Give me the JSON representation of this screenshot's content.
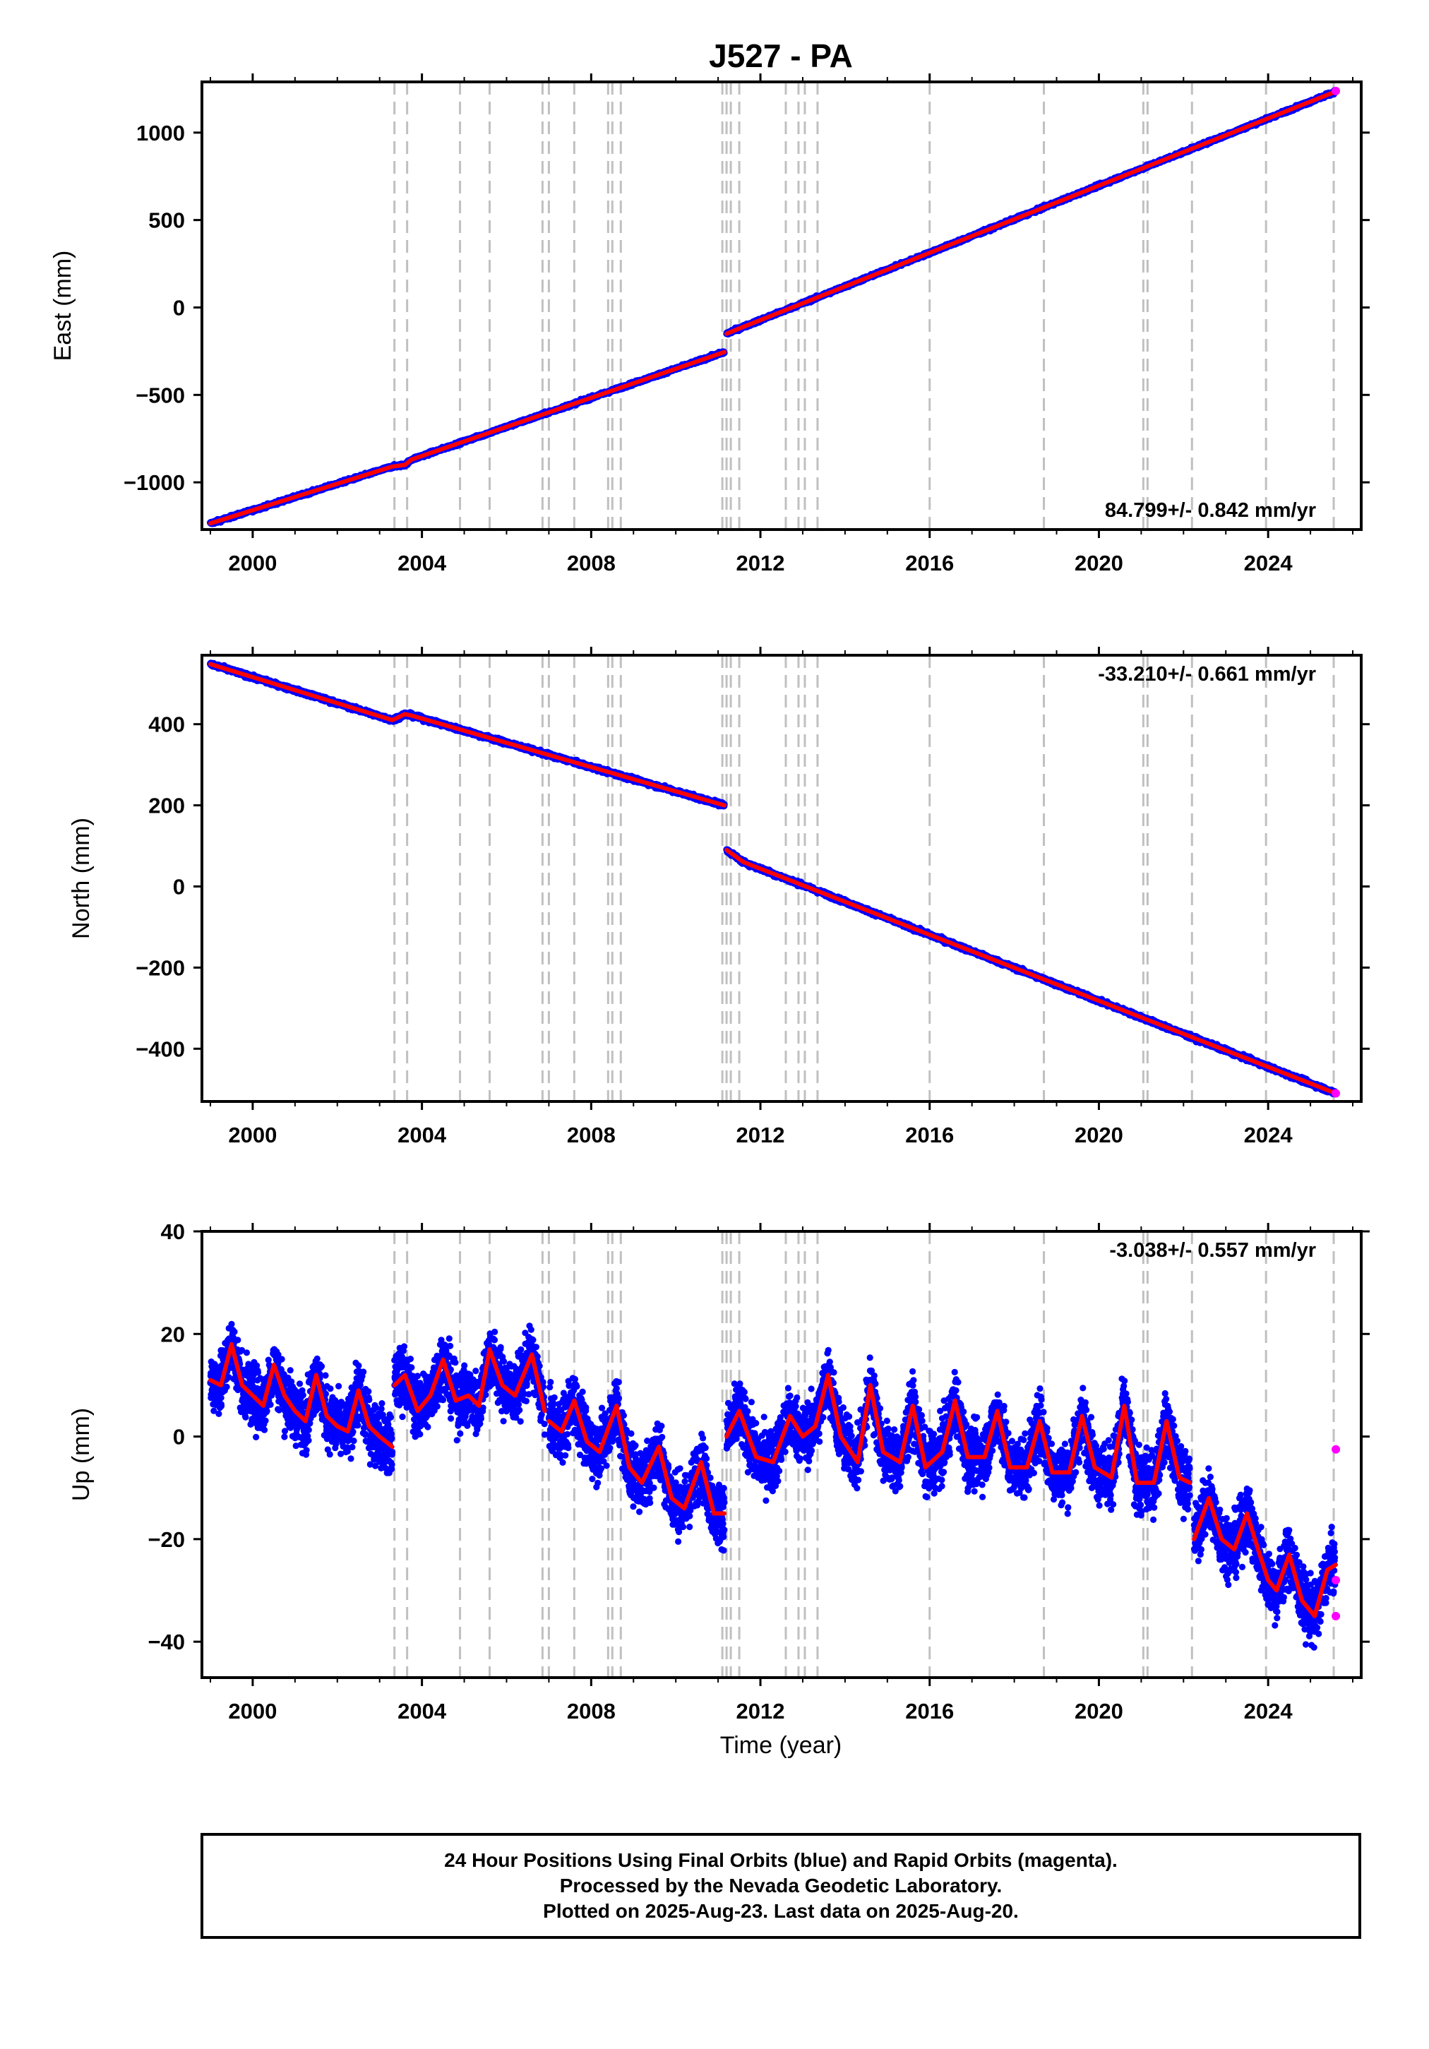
{
  "title": "J527 - PA",
  "xlabel": "Time (year)",
  "colors": {
    "final_orbits": "#0000ff",
    "rapid_orbits": "#ff00ff",
    "model": "#ff0000",
    "event_lines": "#c0c0c0"
  },
  "footer": {
    "line1": "24 Hour Positions Using Final Orbits (blue) and Rapid Orbits (magenta).",
    "line2": "Processed by the Nevada Geodetic Laboratory.",
    "line3": "Plotted on 2025-Aug-23. Last data on 2025-Aug-20."
  },
  "chart_data": [
    {
      "type": "scatter",
      "ylabel": "East (mm)",
      "rate_text": "84.799+/- 0.842 mm/yr",
      "rate_position": "bottom-right",
      "xlim": [
        1998.8,
        2026.2
      ],
      "ylim": [
        -1270,
        1290
      ],
      "xticks": [
        2000,
        2004,
        2008,
        2012,
        2016,
        2020,
        2024
      ],
      "xtick_labels": [
        "2000",
        "2004",
        "2008",
        "2012",
        "2016",
        "2020",
        "2024"
      ],
      "yticks": [
        -1000,
        -500,
        0,
        500,
        1000
      ],
      "ytick_labels": [
        "−1000",
        "−500",
        "0",
        "500",
        "1000"
      ],
      "event_lines": [
        2003.35,
        2003.65,
        2004.9,
        2005.6,
        2006.85,
        2007.0,
        2007.6,
        2008.4,
        2008.5,
        2008.7,
        2011.1,
        2011.2,
        2011.3,
        2011.5,
        2012.6,
        2012.9,
        2013.05,
        2013.35,
        2016.0,
        2018.7,
        2021.05,
        2021.15,
        2022.2,
        2023.95,
        2025.55
      ],
      "model": {
        "segments": [
          {
            "x": [
              1999.0,
              2003.3,
              2003.6,
              2003.75
            ],
            "y": [
              -1235,
              -910,
              -900,
              -870
            ]
          },
          {
            "x": [
              2003.75,
              2011.15
            ],
            "y": [
              -870,
              -255
            ]
          },
          {
            "x": [
              2011.2,
              2011.5,
              2025.6
            ],
            "y": [
              -150,
              -120,
              1235
            ]
          }
        ]
      },
      "rapid_points": {
        "x": [
          2025.6
        ],
        "y": [
          1238
        ]
      }
    },
    {
      "type": "scatter",
      "ylabel": "North (mm)",
      "rate_text": "-33.210+/- 0.661 mm/yr",
      "rate_position": "top-right",
      "xlim": [
        1998.8,
        2026.2
      ],
      "ylim": [
        -530,
        570
      ],
      "xticks": [
        2000,
        2004,
        2008,
        2012,
        2016,
        2020,
        2024
      ],
      "xtick_labels": [
        "2000",
        "2004",
        "2008",
        "2012",
        "2016",
        "2020",
        "2024"
      ],
      "yticks": [
        -400,
        -200,
        0,
        200,
        400
      ],
      "ytick_labels": [
        "−400",
        "−200",
        "0",
        "200",
        "400"
      ],
      "event_lines": [
        2003.35,
        2003.65,
        2004.9,
        2005.6,
        2006.85,
        2007.0,
        2007.6,
        2008.4,
        2008.5,
        2008.7,
        2011.1,
        2011.2,
        2011.3,
        2011.5,
        2012.6,
        2012.9,
        2013.05,
        2013.35,
        2016.0,
        2018.7,
        2021.05,
        2021.15,
        2022.2,
        2023.95,
        2025.55
      ],
      "model": {
        "segments": [
          {
            "x": [
              1999.0,
              2003.3,
              2003.6,
              2003.8
            ],
            "y": [
              548,
              410,
              425,
              420
            ]
          },
          {
            "x": [
              2003.8,
              2011.15
            ],
            "y": [
              420,
              200
            ]
          },
          {
            "x": [
              2011.2,
              2011.6,
              2025.6
            ],
            "y": [
              90,
              60,
              -510
            ]
          }
        ]
      },
      "rapid_points": {
        "x": [
          2025.6
        ],
        "y": [
          -510
        ]
      }
    },
    {
      "type": "scatter",
      "ylabel": "Up (mm)",
      "rate_text": "-3.038+/- 0.557 mm/yr",
      "rate_position": "top-right",
      "xlim": [
        1998.8,
        2026.2
      ],
      "ylim": [
        -47,
        40
      ],
      "xticks": [
        2000,
        2004,
        2008,
        2012,
        2016,
        2020,
        2024
      ],
      "xtick_labels": [
        "2000",
        "2004",
        "2008",
        "2012",
        "2016",
        "2020",
        "2024"
      ],
      "yticks": [
        -40,
        -20,
        0,
        20,
        40
      ],
      "ytick_labels": [
        "−40",
        "−20",
        "0",
        "20",
        "40"
      ],
      "event_lines": [
        2003.35,
        2003.65,
        2004.9,
        2005.6,
        2006.85,
        2007.0,
        2007.6,
        2008.4,
        2008.5,
        2008.7,
        2011.1,
        2011.2,
        2011.3,
        2011.5,
        2012.6,
        2012.9,
        2013.05,
        2013.35,
        2016.0,
        2018.7,
        2021.05,
        2021.15,
        2022.2,
        2023.95,
        2025.55
      ],
      "model": {
        "segments": [
          {
            "x": [
              1999.0,
              1999.25,
              1999.5,
              1999.75,
              2000.0,
              2000.25,
              2000.5,
              2000.75,
              2001.0,
              2001.25,
              2001.5,
              2001.75,
              2002.0,
              2002.25,
              2002.5,
              2002.75,
              2003.0,
              2003.3
            ],
            "y": [
              11,
              10,
              18,
              10,
              8,
              6,
              14,
              8,
              5,
              3,
              12,
              4,
              2,
              1,
              9,
              2,
              0,
              -2
            ]
          },
          {
            "x": [
              2003.35,
              2003.6,
              2003.9,
              2004.2,
              2004.5,
              2004.8,
              2005.1,
              2005.35,
              2005.6,
              2005.9,
              2006.2,
              2006.6,
              2006.9
            ],
            "y": [
              10,
              12,
              5,
              8,
              15,
              7,
              8,
              6,
              17,
              10,
              8,
              16,
              5
            ]
          },
          {
            "x": [
              2007.0,
              2007.3,
              2007.6,
              2007.9,
              2008.2,
              2008.6,
              2008.9,
              2009.2,
              2009.6,
              2009.9,
              2010.2,
              2010.6,
              2010.9,
              2011.15
            ],
            "y": [
              3,
              1,
              7,
              -1,
              -3,
              6,
              -6,
              -9,
              -2,
              -12,
              -14,
              -5,
              -15,
              -15
            ]
          },
          {
            "x": [
              2011.2,
              2011.5,
              2011.9,
              2012.3,
              2012.7,
              2013.0,
              2013.3,
              2013.6,
              2013.9,
              2014.3,
              2014.6,
              2014.9,
              2015.3,
              2015.6,
              2015.9,
              2016.3,
              2016.6,
              2016.9,
              2017.3,
              2017.6,
              2017.9,
              2018.3,
              2018.6,
              2018.9,
              2019.3,
              2019.6,
              2019.9,
              2020.3,
              2020.6,
              2020.9,
              2021.3,
              2021.6,
              2021.9,
              2022.15
            ],
            "y": [
              0,
              5,
              -4,
              -5,
              4,
              0,
              2,
              12,
              0,
              -5,
              10,
              -3,
              -5,
              6,
              -6,
              -3,
              7,
              -4,
              -4,
              5,
              -6,
              -6,
              3,
              -7,
              -7,
              4,
              -6,
              -8,
              6,
              -9,
              -9,
              3,
              -8,
              -9
            ]
          },
          {
            "x": [
              2022.25,
              2022.6,
              2022.9,
              2023.2,
              2023.5,
              2023.8,
              2024.0,
              2024.2,
              2024.5,
              2024.8,
              2025.1,
              2025.4,
              2025.6
            ],
            "y": [
              -20,
              -12,
              -20,
              -22,
              -15,
              -23,
              -28,
              -30,
              -23,
              -32,
              -35,
              -26,
              -25
            ]
          }
        ]
      },
      "rapid_points": {
        "x": [
          2025.6,
          2025.6,
          2025.6
        ],
        "y": [
          -2.5,
          -35,
          -28
        ]
      }
    }
  ]
}
